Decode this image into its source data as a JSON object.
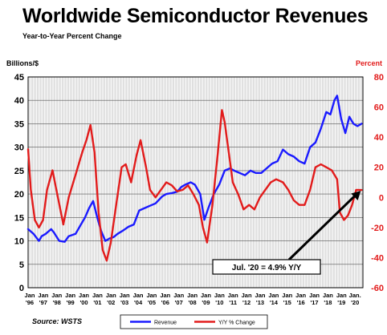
{
  "chart_data": {
    "type": "line",
    "title": "Worldwide Semiconductor Revenues",
    "subtitle": "Year-to-Year Percent Change",
    "ylabel_left": "Billions/$",
    "ylabel_right": "Percent",
    "source": "Source: WSTS",
    "annotation": "Jul. '20 = 4.9% Y/Y",
    "ylim_left": [
      0,
      45
    ],
    "yticks_left": [
      "0",
      "5",
      "10",
      "15",
      "20",
      "25",
      "30",
      "35",
      "40",
      "45"
    ],
    "ylim_right": [
      -60,
      80
    ],
    "yticks_right": [
      "-60",
      "-40",
      "-20",
      "0",
      "20",
      "40",
      "60",
      "80"
    ],
    "xlim": [
      1996.0,
      2020.7
    ],
    "xticks": [
      {
        "month": "Jan",
        "year": "'96"
      },
      {
        "month": "Jan",
        "year": "'97"
      },
      {
        "month": "Jan",
        "year": "'98"
      },
      {
        "month": "Jan",
        "year": "'99"
      },
      {
        "month": "Jan",
        "year": "'00"
      },
      {
        "month": "Jan",
        "year": "'01"
      },
      {
        "month": "Jan",
        "year": "'02"
      },
      {
        "month": "Jan",
        "year": "'03"
      },
      {
        "month": "Jan",
        "year": "'04"
      },
      {
        "month": "Jan",
        "year": "'05"
      },
      {
        "month": "Jan",
        "year": "'06"
      },
      {
        "month": "Jan",
        "year": "'07"
      },
      {
        "month": "Jan",
        "year": "'08"
      },
      {
        "month": "Jan",
        "year": "'09"
      },
      {
        "month": "Jan",
        "year": "'10"
      },
      {
        "month": "Jan",
        "year": "'11"
      },
      {
        "month": "Jan",
        "year": "'12"
      },
      {
        "month": "Jan",
        "year": "'13"
      },
      {
        "month": "Jan",
        "year": "'14"
      },
      {
        "month": "Jan",
        "year": "'15"
      },
      {
        "month": "Jan",
        "year": "'16"
      },
      {
        "month": "Jan",
        "year": "'17"
      },
      {
        "month": "Jan",
        "year": "'18"
      },
      {
        "month": "Jan",
        "year": "'19"
      },
      {
        "month": "Jan.",
        "year": "'20"
      }
    ],
    "grid": true,
    "legend_position": "bottom-center",
    "series": [
      {
        "name": "Revenue",
        "axis": "left",
        "color": "#1a1aff",
        "x": [
          1996.0,
          1996.4,
          1996.8,
          1997.0,
          1997.3,
          1997.7,
          1997.9,
          1998.3,
          1998.7,
          1999.0,
          1999.5,
          1999.9,
          2000.2,
          2000.5,
          2000.8,
          2001.1,
          2001.4,
          2001.7,
          2002.0,
          2002.3,
          2002.6,
          2003.0,
          2003.4,
          2003.8,
          2004.2,
          2004.6,
          2005.0,
          2005.4,
          2005.9,
          2006.2,
          2006.6,
          2007.0,
          2007.3,
          2007.6,
          2008.0,
          2008.3,
          2008.7,
          2009.0,
          2009.3,
          2009.7,
          2010.1,
          2010.5,
          2010.9,
          2011.2,
          2011.6,
          2012.0,
          2012.4,
          2012.8,
          2013.2,
          2013.6,
          2014.0,
          2014.4,
          2014.8,
          2015.2,
          2015.6,
          2016.0,
          2016.4,
          2016.8,
          2017.2,
          2017.6,
          2018.0,
          2018.3,
          2018.6,
          2018.8,
          2019.1,
          2019.4,
          2019.7,
          2020.0,
          2020.3,
          2020.6
        ],
        "values": [
          12.5,
          11.5,
          10.0,
          11.0,
          11.5,
          12.5,
          11.8,
          10.0,
          9.8,
          11.0,
          11.5,
          13.5,
          15.0,
          17.0,
          18.5,
          15.0,
          12.0,
          10.0,
          10.5,
          10.8,
          11.5,
          12.2,
          13.0,
          13.5,
          16.5,
          17.0,
          17.5,
          18.0,
          19.5,
          20.0,
          20.2,
          20.5,
          21.5,
          22.0,
          22.5,
          22.0,
          20.0,
          14.5,
          17.0,
          20.0,
          22.0,
          25.0,
          25.5,
          25.0,
          24.5,
          24.0,
          25.0,
          24.5,
          24.5,
          25.5,
          26.5,
          27.0,
          29.5,
          28.5,
          28.0,
          27.0,
          26.5,
          30.0,
          31.0,
          34.0,
          37.5,
          37.0,
          40.0,
          41.0,
          36.0,
          33.0,
          36.5,
          35.0,
          34.5,
          35.0
        ]
      },
      {
        "name": "Y/Y % Change",
        "axis": "right",
        "color": "#e21b1b",
        "x": [
          1996.0,
          1996.2,
          1996.5,
          1996.8,
          1997.1,
          1997.4,
          1997.8,
          1998.2,
          1998.6,
          1999.0,
          1999.5,
          2000.0,
          2000.3,
          2000.6,
          2000.9,
          2001.2,
          2001.5,
          2001.8,
          2002.1,
          2002.5,
          2002.9,
          2003.2,
          2003.6,
          2004.0,
          2004.3,
          2004.7,
          2005.0,
          2005.4,
          2005.8,
          2006.2,
          2006.6,
          2007.0,
          2007.4,
          2007.8,
          2008.2,
          2008.6,
          2008.9,
          2009.2,
          2009.6,
          2010.0,
          2010.3,
          2010.5,
          2010.8,
          2011.1,
          2011.5,
          2011.9,
          2012.3,
          2012.7,
          2013.1,
          2013.5,
          2013.9,
          2014.3,
          2014.8,
          2015.2,
          2015.6,
          2016.0,
          2016.4,
          2016.8,
          2017.2,
          2017.6,
          2018.0,
          2018.4,
          2018.8,
          2019.0,
          2019.3,
          2019.6,
          2019.9,
          2020.2,
          2020.6
        ],
        "values": [
          32.0,
          5.0,
          -15.0,
          -20.0,
          -15.0,
          5.0,
          18.0,
          0.0,
          -18.0,
          0.0,
          15.0,
          30.0,
          38.0,
          48.0,
          30.0,
          -10.0,
          -35.0,
          -42.0,
          -30.0,
          -5.0,
          20.0,
          22.0,
          10.0,
          28.0,
          38.0,
          20.0,
          5.0,
          0.0,
          5.0,
          10.0,
          8.0,
          4.0,
          5.0,
          8.0,
          2.0,
          -5.0,
          -20.0,
          -30.0,
          -5.0,
          30.0,
          58.0,
          50.0,
          30.0,
          10.0,
          2.0,
          -8.0,
          -5.0,
          -8.0,
          0.0,
          5.0,
          10.0,
          12.0,
          10.0,
          5.0,
          -2.0,
          -5.0,
          -5.0,
          5.0,
          20.0,
          22.0,
          20.0,
          18.0,
          12.0,
          -10.0,
          -15.0,
          -12.0,
          -5.0,
          5.0,
          4.9
        ]
      }
    ]
  }
}
